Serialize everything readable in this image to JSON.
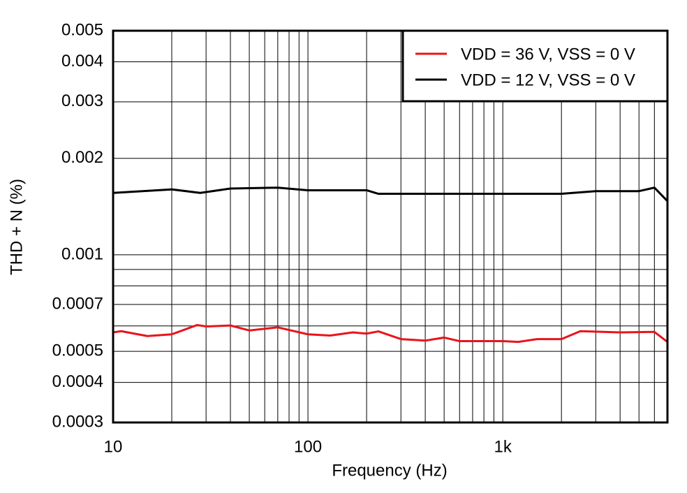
{
  "chart_data": {
    "type": "line",
    "x_label": "Frequency (Hz)",
    "y_label": "THD + N (%)",
    "xscale": "log",
    "yscale": "log",
    "grid": true,
    "legend": "upper right",
    "xlim": [
      10,
      7000
    ],
    "ylim": [
      0.0003,
      0.005
    ],
    "xticks": [
      10,
      100,
      {
        "value": 1000,
        "label": "1k"
      }
    ],
    "xminor_ticks": [
      20,
      30,
      40,
      50,
      60,
      70,
      80,
      90,
      200,
      300,
      400,
      500,
      600,
      700,
      800,
      900,
      2000,
      3000,
      4000,
      5000,
      6000
    ],
    "yticks": [
      0.0003,
      0.0004,
      0.0005,
      0.0007,
      0.001,
      0.002,
      0.003,
      0.004,
      0.005
    ],
    "yminor_ticks": [
      0.0006,
      0.0008,
      0.0009
    ],
    "series": [
      {
        "name": "VDD = 36 V, VSS = 0 V",
        "color": "#e8141c",
        "x": [
          10,
          11,
          15,
          20,
          27,
          30,
          40,
          50,
          70,
          100,
          130,
          170,
          200,
          230,
          300,
          400,
          500,
          600,
          1000,
          1200,
          1500,
          2000,
          2500,
          4000,
          6000,
          7000
        ],
        "values": [
          0.000573,
          0.000578,
          0.000558,
          0.000565,
          0.000604,
          0.000598,
          0.000602,
          0.000581,
          0.000594,
          0.000565,
          0.00056,
          0.000573,
          0.000568,
          0.000577,
          0.000546,
          0.00054,
          0.000552,
          0.000538,
          0.000538,
          0.000535,
          0.000546,
          0.000546,
          0.000578,
          0.000573,
          0.000575,
          0.000535
        ]
      },
      {
        "name": "VDD = 12 V, VSS = 0 V",
        "color": "#000000",
        "x": [
          10,
          20,
          28,
          40,
          70,
          100,
          200,
          230,
          400,
          1000,
          2000,
          3000,
          5000,
          6000,
          7000
        ],
        "values": [
          0.00156,
          0.0016,
          0.00156,
          0.00161,
          0.00162,
          0.00159,
          0.00159,
          0.00155,
          0.00155,
          0.00155,
          0.00155,
          0.00158,
          0.00158,
          0.00162,
          0.00147
        ]
      }
    ]
  }
}
